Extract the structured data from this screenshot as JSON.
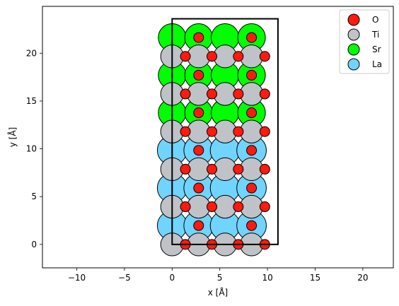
{
  "chart_data": {
    "type": "scatter",
    "title": "",
    "xlabel": "x [Å]",
    "ylabel": "y [Å]",
    "xlim": [
      -13.6,
      23.2
    ],
    "ylim": [
      -2.45,
      24.9
    ],
    "xticks": [
      -10,
      -5,
      0,
      5,
      10,
      15,
      20
    ],
    "yticks": [
      0,
      5,
      10,
      15,
      20
    ],
    "xtick_labels": [
      "−10",
      "−5",
      "0",
      "5",
      "10",
      "15",
      "20"
    ],
    "ytick_labels": [
      "0",
      "5",
      "10",
      "15",
      "20"
    ],
    "grid": false,
    "legend_position": "top-right",
    "cell": {
      "x": [
        0,
        11.1
      ],
      "y": [
        0,
        23.6
      ]
    },
    "series": [
      {
        "name": "O",
        "color": "#ff1a0d",
        "radius": 0.52,
        "points": [
          [
            1.39,
            0
          ],
          [
            4.17,
            0
          ],
          [
            6.94,
            0
          ],
          [
            9.72,
            0
          ],
          [
            2.78,
            1.97
          ],
          [
            8.33,
            1.97
          ],
          [
            1.39,
            3.94
          ],
          [
            4.17,
            3.94
          ],
          [
            6.94,
            3.94
          ],
          [
            9.72,
            3.94
          ],
          [
            2.78,
            5.9
          ],
          [
            8.33,
            5.9
          ],
          [
            1.39,
            7.87
          ],
          [
            4.17,
            7.87
          ],
          [
            6.94,
            7.87
          ],
          [
            9.72,
            7.87
          ],
          [
            2.78,
            9.84
          ],
          [
            8.33,
            9.84
          ],
          [
            1.39,
            11.8
          ],
          [
            4.17,
            11.8
          ],
          [
            6.94,
            11.8
          ],
          [
            9.72,
            11.8
          ],
          [
            2.78,
            13.77
          ],
          [
            8.33,
            13.77
          ],
          [
            1.39,
            15.74
          ],
          [
            4.17,
            15.74
          ],
          [
            6.94,
            15.74
          ],
          [
            9.72,
            15.74
          ],
          [
            2.78,
            17.7
          ],
          [
            8.33,
            17.7
          ],
          [
            1.39,
            19.67
          ],
          [
            4.17,
            19.67
          ],
          [
            6.94,
            19.67
          ],
          [
            9.72,
            19.67
          ],
          [
            2.78,
            21.64
          ],
          [
            8.33,
            21.64
          ]
        ]
      },
      {
        "name": "Ti",
        "color": "#bfc2c7",
        "radius": 1.2,
        "points": [
          [
            0,
            0
          ],
          [
            2.78,
            0
          ],
          [
            5.55,
            0
          ],
          [
            8.33,
            0
          ],
          [
            0,
            3.94
          ],
          [
            2.78,
            3.94
          ],
          [
            5.55,
            3.94
          ],
          [
            8.33,
            3.94
          ],
          [
            0,
            7.87
          ],
          [
            2.78,
            7.87
          ],
          [
            5.55,
            7.87
          ],
          [
            8.33,
            7.87
          ],
          [
            0,
            11.8
          ],
          [
            2.78,
            11.8
          ],
          [
            5.55,
            11.8
          ],
          [
            8.33,
            11.8
          ],
          [
            0,
            15.74
          ],
          [
            2.78,
            15.74
          ],
          [
            5.55,
            15.74
          ],
          [
            8.33,
            15.74
          ],
          [
            0,
            19.67
          ],
          [
            2.78,
            19.67
          ],
          [
            5.55,
            19.67
          ],
          [
            8.33,
            19.67
          ]
        ]
      },
      {
        "name": "Sr",
        "color": "#00ff00",
        "radius": 1.45,
        "points": [
          [
            0,
            13.77
          ],
          [
            2.78,
            13.77
          ],
          [
            5.55,
            13.77
          ],
          [
            8.33,
            13.77
          ],
          [
            0,
            17.7
          ],
          [
            2.78,
            17.7
          ],
          [
            5.55,
            17.7
          ],
          [
            8.33,
            17.7
          ],
          [
            0,
            21.64
          ],
          [
            2.78,
            21.64
          ],
          [
            5.55,
            21.64
          ],
          [
            8.33,
            21.64
          ]
        ]
      },
      {
        "name": "La",
        "color": "#70d4ff",
        "radius": 1.55,
        "points": [
          [
            0,
            1.97
          ],
          [
            2.78,
            1.97
          ],
          [
            5.55,
            1.97
          ],
          [
            8.33,
            1.97
          ],
          [
            0,
            5.9
          ],
          [
            2.78,
            5.9
          ],
          [
            5.55,
            5.9
          ],
          [
            8.33,
            5.9
          ],
          [
            0,
            9.84
          ],
          [
            2.78,
            9.84
          ],
          [
            5.55,
            9.84
          ],
          [
            8.33,
            9.84
          ]
        ]
      }
    ]
  }
}
